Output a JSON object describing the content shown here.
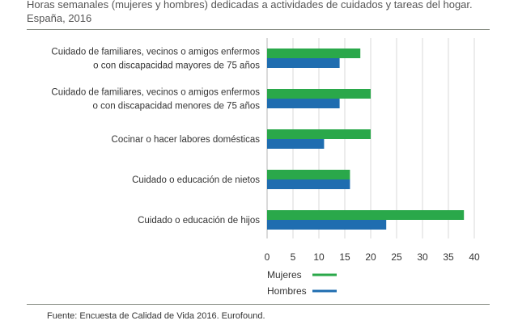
{
  "header": {
    "title": "Horas semanales (mujeres y hombres) dedicadas a actividades de cuidados y tareas del hogar. España, 2016"
  },
  "footer": {
    "source": "Fuente: Encuesta de Calidad de Vida 2016. Eurofound."
  },
  "colors": {
    "mujeres": "#2aa84a",
    "hombres": "#1f6db0"
  },
  "chart_data": {
    "type": "bar",
    "orientation": "horizontal",
    "categories": [
      [
        "Cuidado de familiares, vecinos o amigos enfermos",
        "o con discapacidad mayores de 75 años"
      ],
      [
        "Cuidado de familiares, vecinos o amigos enfermos",
        "o con discapacidad menores de 75 años"
      ],
      [
        "Cocinar o hacer labores domésticas"
      ],
      [
        "Cuidado o educación de nietos"
      ],
      [
        "Cuidado o educación de hijos"
      ]
    ],
    "series": [
      {
        "name": "Mujeres",
        "values": [
          18,
          20,
          20,
          16,
          38
        ]
      },
      {
        "name": "Hombres",
        "values": [
          14,
          14,
          11,
          16,
          23
        ]
      }
    ],
    "xlim": [
      0,
      40
    ],
    "xticks": [
      0,
      5,
      10,
      15,
      20,
      25,
      30,
      35,
      40
    ],
    "grid": true,
    "legend_position": "bottom-left"
  }
}
